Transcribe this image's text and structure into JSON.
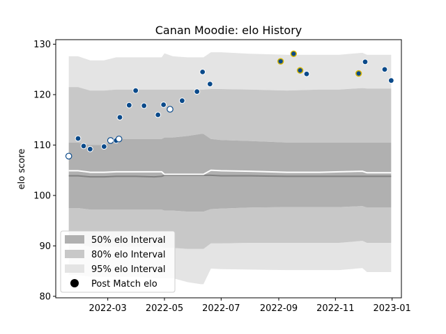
{
  "chart_data": {
    "type": "scatter",
    "title": "Canan Moodie: elo History",
    "xlabel": "",
    "ylabel": "elo score",
    "xlim": [
      "2022-01-04",
      "2023-01-11"
    ],
    "ylim": [
      79.7,
      130.9
    ],
    "x_ticks": [
      "2022-03",
      "2022-05",
      "2022-07",
      "2022-09",
      "2022-11",
      "2023-01"
    ],
    "y_ticks": [
      80,
      90,
      100,
      110,
      120,
      130
    ],
    "grid": false,
    "legend_position": "lower-left",
    "legend": {
      "band50": "50% elo Interval",
      "band80": "80% elo Interval",
      "band95": "95% elo Interval",
      "points": "Post Match elo"
    },
    "colors": {
      "band50": "#b0b0b0",
      "band80": "#c8c8c8",
      "band95": "#e4e4e4",
      "median_line": "#808080",
      "mean_line": "#ffffff",
      "point_fill": "#0b4a8a",
      "point_edge_highlight": "#d4b400",
      "point_edge_default": "#ffffff",
      "open_point_fill": "#ffffff",
      "open_point_edge": "#0b4a8a"
    },
    "bands": {
      "x": [
        "2022-01-18",
        "2022-01-28",
        "2022-02-10",
        "2022-02-25",
        "2022-03-10",
        "2022-03-31",
        "2022-04-20",
        "2022-04-28",
        "2022-05-01",
        "2022-05-10",
        "2022-05-26",
        "2022-06-09",
        "2022-06-12",
        "2022-06-20",
        "2022-07-01",
        "2022-08-01",
        "2022-09-10",
        "2022-10-15",
        "2022-11-05",
        "2022-11-30",
        "2022-12-05",
        "2022-12-31"
      ],
      "band95_upper": [
        127.6,
        127.6,
        126.8,
        126.8,
        127.4,
        127.4,
        127.4,
        127.4,
        128.2,
        127.6,
        127.4,
        127.4,
        127.4,
        128.4,
        128.4,
        128.1,
        127.9,
        127.9,
        127.9,
        128.3,
        127.9,
        127.9
      ],
      "band80_upper": [
        121.5,
        121.5,
        120.8,
        120.8,
        121.0,
        121.0,
        121.0,
        121.0,
        121.0,
        121.0,
        121.0,
        121.0,
        121.0,
        121.1,
        121.1,
        121.0,
        120.8,
        121.0,
        121.0,
        121.3,
        121.2,
        121.2
      ],
      "band50_upper": [
        110.5,
        110.5,
        110.0,
        110.0,
        111.2,
        111.2,
        111.2,
        111.2,
        111.5,
        111.5,
        111.8,
        112.2,
        112.2,
        111.2,
        111.0,
        110.8,
        110.5,
        110.5,
        110.5,
        110.5,
        110.5,
        110.5
      ],
      "mean": [
        104.9,
        104.9,
        104.6,
        104.6,
        104.7,
        104.7,
        104.7,
        104.7,
        104.2,
        104.2,
        104.2,
        104.2,
        104.2,
        105.0,
        104.9,
        104.8,
        104.6,
        104.6,
        104.7,
        104.8,
        104.5,
        104.5
      ],
      "median": [
        103.9,
        103.9,
        103.7,
        103.7,
        103.8,
        103.8,
        103.7,
        103.8,
        104.0,
        104.0,
        104.0,
        104.0,
        104.0,
        104.0,
        103.9,
        103.9,
        103.8,
        103.8,
        103.8,
        103.8,
        103.8,
        103.8
      ],
      "band50_lower": [
        97.5,
        97.5,
        97.2,
        97.2,
        97.2,
        97.2,
        97.2,
        97.2,
        97.0,
        97.0,
        96.8,
        96.8,
        96.8,
        97.3,
        97.4,
        97.6,
        97.7,
        97.7,
        97.7,
        97.9,
        97.6,
        97.6
      ],
      "band80_lower": [
        90.4,
        90.4,
        89.8,
        89.8,
        89.8,
        89.8,
        89.8,
        89.8,
        89.6,
        89.6,
        89.4,
        89.4,
        89.4,
        90.5,
        90.5,
        90.6,
        90.6,
        90.6,
        90.6,
        91.0,
        90.6,
        90.6
      ],
      "band95_lower": [
        84.2,
        84.2,
        83.9,
        83.9,
        83.9,
        83.9,
        83.6,
        83.6,
        83.6,
        83.6,
        82.8,
        82.4,
        82.4,
        85.5,
        85.4,
        85.3,
        85.2,
        85.2,
        85.2,
        85.6,
        84.8,
        84.8
      ]
    },
    "points": [
      {
        "date": "2022-01-18",
        "elo": 107.8,
        "style": "open"
      },
      {
        "date": "2022-01-28",
        "elo": 111.3,
        "style": "filled"
      },
      {
        "date": "2022-02-03",
        "elo": 109.8,
        "style": "filled"
      },
      {
        "date": "2022-02-10",
        "elo": 109.2,
        "style": "filled"
      },
      {
        "date": "2022-02-25",
        "elo": 109.7,
        "style": "filled"
      },
      {
        "date": "2022-03-04",
        "elo": 110.9,
        "style": "open"
      },
      {
        "date": "2022-03-10",
        "elo": 110.9,
        "style": "filled"
      },
      {
        "date": "2022-03-13",
        "elo": 111.2,
        "style": "open"
      },
      {
        "date": "2022-03-14",
        "elo": 115.5,
        "style": "filled"
      },
      {
        "date": "2022-03-24",
        "elo": 117.9,
        "style": "filled"
      },
      {
        "date": "2022-03-31",
        "elo": 120.8,
        "style": "filled"
      },
      {
        "date": "2022-04-09",
        "elo": 117.8,
        "style": "filled"
      },
      {
        "date": "2022-04-24",
        "elo": 116.0,
        "style": "filled"
      },
      {
        "date": "2022-04-30",
        "elo": 118.0,
        "style": "filled"
      },
      {
        "date": "2022-05-07",
        "elo": 117.1,
        "style": "open"
      },
      {
        "date": "2022-05-20",
        "elo": 118.8,
        "style": "filled"
      },
      {
        "date": "2022-06-05",
        "elo": 120.6,
        "style": "filled"
      },
      {
        "date": "2022-06-11",
        "elo": 124.5,
        "style": "filled"
      },
      {
        "date": "2022-06-19",
        "elo": 122.1,
        "style": "filled"
      },
      {
        "date": "2022-09-03",
        "elo": 126.6,
        "style": "highlight"
      },
      {
        "date": "2022-09-17",
        "elo": 128.1,
        "style": "highlight"
      },
      {
        "date": "2022-09-24",
        "elo": 124.8,
        "style": "highlight"
      },
      {
        "date": "2022-10-01",
        "elo": 124.1,
        "style": "filled"
      },
      {
        "date": "2022-11-26",
        "elo": 124.2,
        "style": "highlight"
      },
      {
        "date": "2022-12-03",
        "elo": 126.5,
        "style": "filled"
      },
      {
        "date": "2022-12-24",
        "elo": 125.0,
        "style": "filled"
      },
      {
        "date": "2022-12-31",
        "elo": 122.8,
        "style": "filled"
      }
    ]
  }
}
